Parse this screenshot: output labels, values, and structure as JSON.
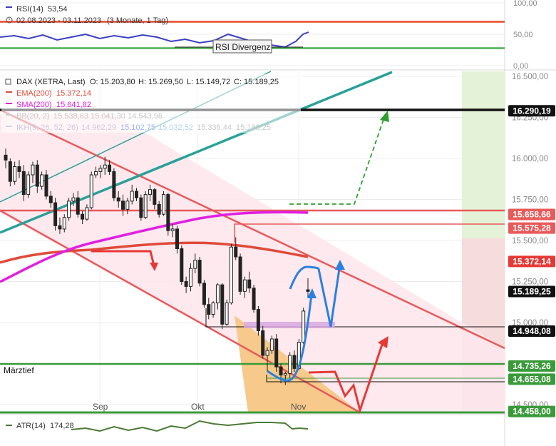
{
  "rsi_panel": {
    "indicator_name": "RSI(14)",
    "indicator_value": "53,54",
    "date_range": "02.08.2023 - 03.11.2023",
    "timeframe": "(3 Monate, 1 Tag)",
    "axis_ticks": [
      "100,00",
      "50,00",
      "0,00"
    ],
    "divergence_label": "RSI Divergenz",
    "line_color": "#3a3fc4"
  },
  "legend": {
    "instrument": "DAX (XETRA, Last)",
    "open": "O: 15.203,80",
    "high": "H: 15.269,50",
    "low": "L: 15.149,72",
    "close": "C: 15.189,25",
    "ema_label": "EMA(200)",
    "ema_value": "15.372,14",
    "sma_label": "SMA(200)",
    "sma_value": "15.641,82",
    "bb_label": "BB(20, 2)",
    "bb_values": "15.538,63  15.041,30  14.543,96",
    "ikh_label": "IKH(9, 26, 52, 26)",
    "ikh_values": [
      "14.962,29",
      "15.102,75",
      "15.032,52",
      "15.336,44",
      "15.189,25"
    ]
  },
  "price_axis": {
    "ticks": [
      "16.500,00",
      "16.250,00",
      "16.000,00",
      "15.750,00",
      "15.500,00",
      "15.250,00",
      "15.000,00",
      "14.750,00",
      "14.500,00"
    ]
  },
  "level_tags": [
    {
      "label": "16.290,19",
      "value": 16290.19,
      "bg": "#111111"
    },
    {
      "label": "15.658,66",
      "value": 15658.66,
      "bg": "#e85a5a"
    },
    {
      "label": "15.575,28",
      "value": 15575.28,
      "bg": "#e85a5a"
    },
    {
      "label": "15.372,14",
      "value": 15372.14,
      "bg": "#e53935"
    },
    {
      "label": "15.189,25",
      "value": 15189.25,
      "bg": "#111111"
    },
    {
      "label": "14.948,08",
      "value": 14948.08,
      "bg": "#111111"
    },
    {
      "label": "14.735,26",
      "value": 14735.26,
      "bg": "#3a9a3a"
    },
    {
      "label": "14.655,08",
      "value": 14655.08,
      "bg": "#3a9a3a"
    },
    {
      "label": "14.458,00",
      "value": 14458.0,
      "bg": "#3a9a3a"
    }
  ],
  "annotation_maerztief": "Märztief",
  "x_labels": [
    "Sep",
    "Okt",
    "Nov"
  ],
  "atr_panel": {
    "indicator_name": "ATR(14)",
    "indicator_value": "174,28",
    "line_color": "#4a7a34"
  },
  "chart_data": {
    "type": "candlestick",
    "title": "DAX (XETRA, Last)",
    "xlabel": "",
    "ylabel": "",
    "ylim": [
      14400,
      16500
    ],
    "x": [
      "2023-08-02",
      "2023-08-03",
      "2023-08-04",
      "2023-08-07",
      "2023-08-08",
      "2023-08-09",
      "2023-08-10",
      "2023-08-11",
      "2023-08-14",
      "2023-08-15",
      "2023-08-16",
      "2023-08-17",
      "2023-08-18",
      "2023-08-21",
      "2023-08-22",
      "2023-08-23",
      "2023-08-24",
      "2023-08-25",
      "2023-08-28",
      "2023-08-29",
      "2023-08-30",
      "2023-08-31",
      "2023-09-01",
      "2023-09-04",
      "2023-09-05",
      "2023-09-06",
      "2023-09-07",
      "2023-09-08",
      "2023-09-11",
      "2023-09-12",
      "2023-09-13",
      "2023-09-14",
      "2023-09-15",
      "2023-09-18",
      "2023-09-19",
      "2023-09-20",
      "2023-09-21",
      "2023-09-22",
      "2023-09-25",
      "2023-09-26",
      "2023-09-27",
      "2023-09-28",
      "2023-09-29",
      "2023-10-02",
      "2023-10-03",
      "2023-10-04",
      "2023-10-05",
      "2023-10-06",
      "2023-10-09",
      "2023-10-10",
      "2023-10-11",
      "2023-10-12",
      "2023-10-13",
      "2023-10-16",
      "2023-10-17",
      "2023-10-18",
      "2023-10-19",
      "2023-10-20",
      "2023-10-23",
      "2023-10-24",
      "2023-10-25",
      "2023-10-26",
      "2023-10-27",
      "2023-10-30",
      "2023-10-31",
      "2023-11-01",
      "2023-11-02",
      "2023-11-03"
    ],
    "ohlc": [
      [
        16020,
        16060,
        15940,
        15990
      ],
      [
        15980,
        16000,
        15830,
        15860
      ],
      [
        15860,
        15980,
        15840,
        15950
      ],
      [
        15950,
        15990,
        15880,
        15920
      ],
      [
        15920,
        15960,
        15740,
        15780
      ],
      [
        15780,
        15920,
        15760,
        15900
      ],
      [
        15900,
        15980,
        15850,
        15960
      ],
      [
        15960,
        15990,
        15790,
        15830
      ],
      [
        15830,
        15920,
        15810,
        15900
      ],
      [
        15900,
        15930,
        15750,
        15770
      ],
      [
        15770,
        15800,
        15700,
        15730
      ],
      [
        15730,
        15760,
        15560,
        15590
      ],
      [
        15590,
        15640,
        15540,
        15570
      ],
      [
        15570,
        15660,
        15550,
        15640
      ],
      [
        15640,
        15760,
        15620,
        15740
      ],
      [
        15740,
        15790,
        15710,
        15760
      ],
      [
        15760,
        15800,
        15640,
        15660
      ],
      [
        15660,
        15680,
        15600,
        15630
      ],
      [
        15630,
        15720,
        15620,
        15700
      ],
      [
        15700,
        15920,
        15690,
        15900
      ],
      [
        15900,
        15950,
        15880,
        15920
      ],
      [
        15920,
        15960,
        15880,
        15940
      ],
      [
        15940,
        16010,
        15900,
        15960
      ],
      [
        15960,
        15990,
        15900,
        15920
      ],
      [
        15920,
        15940,
        15740,
        15760
      ],
      [
        15760,
        15800,
        15700,
        15740
      ],
      [
        15740,
        15780,
        15650,
        15690
      ],
      [
        15690,
        15760,
        15660,
        15740
      ],
      [
        15740,
        15840,
        15720,
        15800
      ],
      [
        15800,
        15820,
        15740,
        15760
      ],
      [
        15760,
        15780,
        15620,
        15640
      ],
      [
        15640,
        15800,
        15630,
        15780
      ],
      [
        15780,
        15840,
        15740,
        15810
      ],
      [
        15810,
        15820,
        15690,
        15720
      ],
      [
        15720,
        15740,
        15640,
        15660
      ],
      [
        15660,
        15800,
        15650,
        15780
      ],
      [
        15780,
        15790,
        15530,
        15560
      ],
      [
        15560,
        15600,
        15520,
        15570
      ],
      [
        15570,
        15590,
        15420,
        15450
      ],
      [
        15450,
        15470,
        15230,
        15250
      ],
      [
        15250,
        15280,
        15180,
        15220
      ],
      [
        15220,
        15360,
        15190,
        15330
      ],
      [
        15330,
        15420,
        15300,
        15380
      ],
      [
        15380,
        15400,
        15220,
        15240
      ],
      [
        15240,
        15260,
        15090,
        15110
      ],
      [
        15110,
        15150,
        15020,
        15050
      ],
      [
        15050,
        15130,
        15030,
        15120
      ],
      [
        15120,
        15240,
        15080,
        15230
      ],
      [
        15230,
        15240,
        14960,
        14990
      ],
      [
        14990,
        15140,
        14980,
        15120
      ],
      [
        15120,
        15480,
        15110,
        15460
      ],
      [
        15460,
        15520,
        15380,
        15400
      ],
      [
        15400,
        15420,
        15170,
        15190
      ],
      [
        15190,
        15280,
        15150,
        15260
      ],
      [
        15260,
        15310,
        15180,
        15210
      ],
      [
        15210,
        15230,
        15060,
        15080
      ],
      [
        15080,
        15100,
        14920,
        14950
      ],
      [
        14950,
        14980,
        14780,
        14800
      ],
      [
        14800,
        14850,
        14700,
        14830
      ],
      [
        14830,
        14920,
        14810,
        14900
      ],
      [
        14900,
        14930,
        14700,
        14730
      ],
      [
        14730,
        14750,
        14630,
        14680
      ],
      [
        14680,
        14700,
        14620,
        14690
      ],
      [
        14690,
        14820,
        14660,
        14800
      ],
      [
        14800,
        14830,
        14700,
        14720
      ],
      [
        14720,
        14900,
        14710,
        14880
      ],
      [
        14880,
        15090,
        14870,
        15070
      ],
      [
        15200,
        15270,
        15150,
        15190
      ]
    ],
    "series": [
      {
        "name": "EMA(200)",
        "last": 15372.14
      },
      {
        "name": "SMA(200)",
        "last": 15641.82
      },
      {
        "name": "RSI(14)",
        "last": 53.54
      },
      {
        "name": "ATR(14)",
        "last": 174.28
      }
    ],
    "levels": [
      16290.19,
      15658.66,
      15575.28,
      15372.14,
      15189.25,
      14948.08,
      14735.26,
      14655.08,
      14458.0
    ],
    "grid": true,
    "legend": "top-left"
  }
}
